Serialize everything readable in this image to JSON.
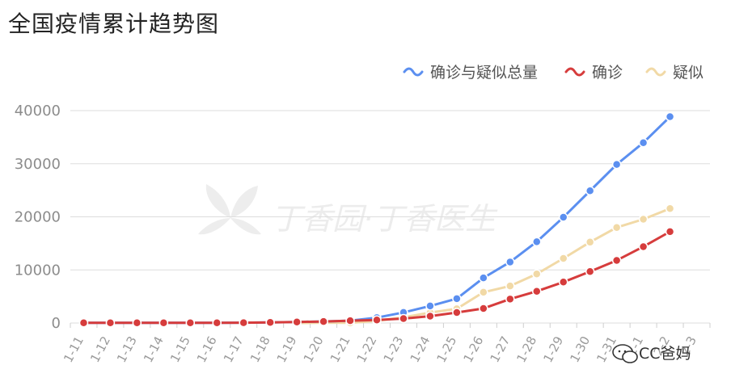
{
  "title": "全国疫情累计趋势图",
  "watermark": {
    "text": "丁香园·丁香医生",
    "icon": "leaf-logo"
  },
  "signature": {
    "text": "CC爸妈",
    "icon": "wechat-icon"
  },
  "colors": {
    "total": "#5b8ff0",
    "confirmed": "#d63c3c",
    "suspected": "#f1d9a6",
    "grid": "#dddddd"
  },
  "chart_data": {
    "type": "line",
    "title": "全国疫情累计趋势图",
    "xlabel": "",
    "ylabel": "",
    "ylim": [
      0,
      40000
    ],
    "yticks": [
      0,
      10000,
      20000,
      30000,
      40000
    ],
    "grid": true,
    "legend_position": "top-right",
    "categories": [
      "1-11",
      "1-12",
      "1-13",
      "1-14",
      "1-15",
      "1-16",
      "1-17",
      "1-18",
      "1-19",
      "1-20",
      "1-21",
      "1-22",
      "1-23",
      "1-24",
      "1-25",
      "1-26",
      "1-27",
      "1-28",
      "1-29",
      "1-30",
      "1-31",
      "2-1",
      "2-2",
      "2-3"
    ],
    "series": [
      {
        "name": "确诊与疑似总量",
        "color": "#5b8ff0",
        "values": [
          41,
          41,
          41,
          41,
          41,
          45,
          62,
          121,
          198,
          291,
          440,
          1016,
          1988,
          3207,
          4591,
          8498,
          11492,
          15306,
          19916,
          24899,
          29868,
          33963,
          38853,
          null
        ]
      },
      {
        "name": "确诊",
        "color": "#d63c3c",
        "values": [
          41,
          41,
          41,
          41,
          41,
          45,
          62,
          121,
          198,
          291,
          440,
          571,
          830,
          1287,
          1975,
          2744,
          4515,
          5974,
          7711,
          9692,
          11791,
          14380,
          17205,
          null
        ]
      },
      {
        "name": "疑似",
        "color": "#f1d9a6",
        "values": [
          null,
          null,
          null,
          null,
          null,
          null,
          null,
          null,
          0,
          54,
          37,
          393,
          1072,
          1965,
          2684,
          5794,
          6973,
          9239,
          12167,
          15238,
          17988,
          19544,
          21558,
          null
        ]
      }
    ]
  }
}
